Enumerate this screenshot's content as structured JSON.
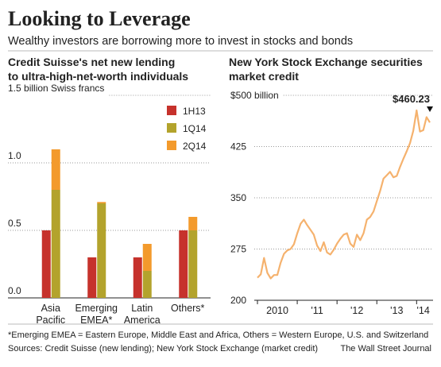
{
  "header": {
    "title": "Looking to Leverage",
    "subtitle": "Wealthy investors are borrowing more to invest in stocks and bonds"
  },
  "chart_data": [
    {
      "type": "bar",
      "title": [
        "Credit Suisse's net new lending",
        "to ultra-high-net-worth individuals"
      ],
      "categories": [
        [
          "Asia",
          "Pacific"
        ],
        [
          "Emerging",
          "EMEA*"
        ],
        [
          "Latin",
          "America"
        ],
        [
          "Others*"
        ]
      ],
      "series": [
        {
          "name": "1H13",
          "color": "#c6322c",
          "stack": "a",
          "values": [
            0.5,
            0.3,
            0.3,
            0.5
          ]
        },
        {
          "name": "1Q14",
          "color": "#b3a32c",
          "stack": "b",
          "values": [
            0.8,
            0.7,
            0.2,
            0.5
          ]
        },
        {
          "name": "2Q14",
          "color": "#f39a2c",
          "stack": "b",
          "values": [
            0.3,
            0.01,
            0.2,
            0.1
          ]
        }
      ],
      "ylim": [
        0,
        1.5
      ],
      "yticks": [
        {
          "value": 0,
          "label": "0.0"
        },
        0.5,
        {
          "value": 1,
          "label": "1.0"
        },
        {
          "value": 1.5,
          "label": "1.5 billion Swiss francs"
        }
      ],
      "grid": true
    },
    {
      "type": "line",
      "title": [
        "New York Stock Exchange securities",
        "market credit"
      ],
      "categories": [
        null,
        null,
        null,
        null,
        null,
        null,
        "2010",
        null,
        null,
        null,
        null,
        null,
        null,
        null,
        null,
        null,
        null,
        null,
        "'11",
        null,
        null,
        null,
        null,
        null,
        null,
        null,
        null,
        null,
        null,
        null,
        "'12",
        null,
        null,
        null,
        null,
        null,
        null,
        null,
        null,
        null,
        null,
        null,
        "'13",
        null,
        null,
        null,
        null,
        null,
        null,
        null,
        "'14",
        null,
        null
      ],
      "series": [
        {
          "name": "NYSE securities market credit",
          "color": "#f5b26e",
          "values": [
            233,
            238,
            262,
            240,
            232,
            237,
            237,
            255,
            268,
            273,
            275,
            282,
            298,
            312,
            318,
            310,
            303,
            296,
            280,
            272,
            285,
            270,
            267,
            274,
            283,
            290,
            296,
            298,
            283,
            278,
            296,
            288,
            298,
            318,
            322,
            330,
            345,
            360,
            378,
            383,
            388,
            380,
            382,
            395,
            407,
            418,
            430,
            448,
            478,
            447,
            449,
            468,
            460.23
          ]
        }
      ],
      "ylim": [
        200,
        500
      ],
      "yticks": [
        200,
        275,
        350,
        425,
        {
          "value": 500,
          "label": "$500 billion"
        }
      ],
      "annotation": "$460.23",
      "grid": true
    }
  ],
  "footer": {
    "note": "*Emerging EMEA = Eastern Europe, Middle East and Africa, Others = Western Europe, U.S. and Switzerland",
    "sources": "Sources: Credit Suisse (new lending); New York Stock Exchange (market credit)",
    "credit": "The Wall Street Journal"
  }
}
